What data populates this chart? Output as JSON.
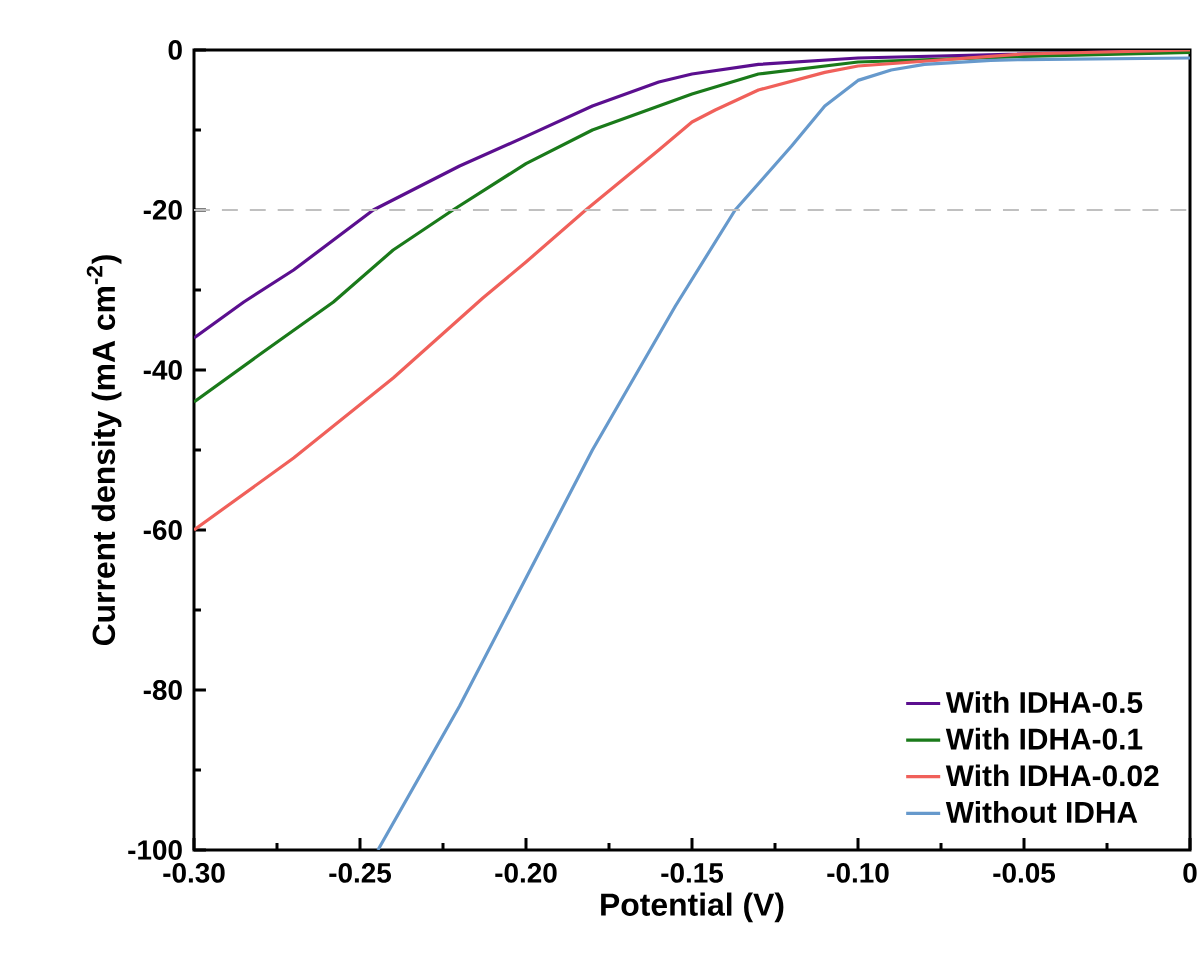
{
  "chart_data": {
    "type": "line",
    "xlabel": "Potential (V)",
    "ylabel": "Current density (mA cm$^{-2}$)",
    "xlim": [
      -0.3,
      0
    ],
    "ylim": [
      -100,
      0
    ],
    "xticks": [
      {
        "value": -0.3,
        "label": "-0.30"
      },
      {
        "value": -0.25,
        "label": "-0.25"
      },
      {
        "value": -0.2,
        "label": "-0.20"
      },
      {
        "value": -0.15,
        "label": "-0.15"
      },
      {
        "value": -0.1,
        "label": "-0.10"
      },
      {
        "value": -0.05,
        "label": "-0.05"
      },
      0
    ],
    "yticks": [
      -100,
      -80,
      -60,
      -40,
      -20,
      0
    ],
    "grid": false,
    "legend": "bottom right",
    "line_style": "solid",
    "ref_lines": [
      {
        "axis": "y",
        "value": -20,
        "color": "#c0c0c0",
        "line_style": "dashed"
      }
    ],
    "series": [
      {
        "name": "With IDHA-0.5",
        "color": "#5b0f8f",
        "x": [
          -0.3,
          -0.285,
          -0.27,
          -0.246,
          -0.22,
          -0.2,
          -0.18,
          -0.16,
          -0.15,
          -0.13,
          -0.1,
          -0.05,
          0
        ],
        "values": [
          -36,
          -31.5,
          -27.5,
          -20,
          -14.5,
          -10.8,
          -7,
          -4,
          -3,
          -1.8,
          -1,
          -0.5,
          0
        ]
      },
      {
        "name": "With IDHA-0.1",
        "color": "#1a7a1a",
        "x": [
          -0.3,
          -0.28,
          -0.258,
          -0.24,
          -0.222,
          -0.2,
          -0.18,
          -0.16,
          -0.15,
          -0.13,
          -0.1,
          -0.05,
          0
        ],
        "values": [
          -44,
          -38,
          -31.5,
          -25,
          -20,
          -14.2,
          -10,
          -7,
          -5.5,
          -3,
          -1.5,
          -0.8,
          -0.3
        ]
      },
      {
        "name": "With IDHA-0.02",
        "color": "#f0605a",
        "x": [
          -0.3,
          -0.27,
          -0.24,
          -0.213,
          -0.2,
          -0.182,
          -0.16,
          -0.15,
          -0.143,
          -0.13,
          -0.11,
          -0.1,
          -0.05,
          0
        ],
        "values": [
          -60,
          -51,
          -41,
          -31,
          -26.5,
          -20,
          -12.5,
          -9,
          -7.5,
          -5,
          -2.8,
          -2,
          -0.5,
          0
        ]
      },
      {
        "name": "Without IDHA",
        "color": "#6699cc",
        "x": [
          -0.2446,
          -0.22,
          -0.2,
          -0.18,
          -0.155,
          -0.137,
          -0.12,
          -0.11,
          -0.1,
          -0.09,
          -0.08,
          -0.06,
          -0.05,
          0
        ],
        "values": [
          -100,
          -82,
          -66,
          -50,
          -32,
          -20,
          -12,
          -7,
          -3.8,
          -2.5,
          -1.8,
          -1.3,
          -1.2,
          -1
        ]
      }
    ]
  }
}
